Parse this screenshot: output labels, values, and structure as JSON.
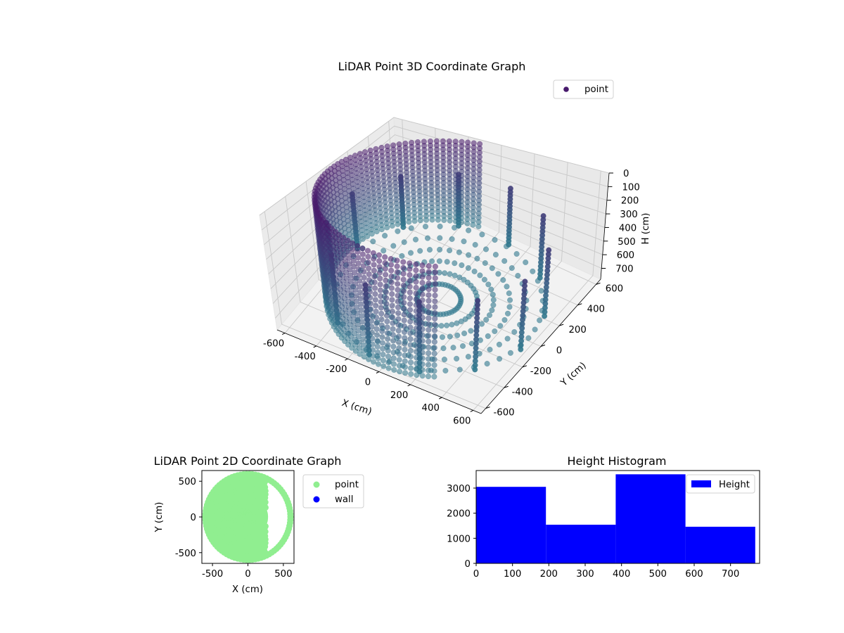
{
  "chart_data": [
    {
      "type": "scatter",
      "projection": "3d",
      "title": "LiDAR Point 3D Coordinate Graph",
      "xlabel": "X (cm)",
      "ylabel": "Y (cm)",
      "zlabel": "H (cm)",
      "xlim": [
        -650,
        650
      ],
      "ylim": [
        -650,
        650
      ],
      "zlim": [
        0,
        780
      ],
      "z_inverted": true,
      "x_ticks": [
        "-600",
        "-400",
        "-200",
        "0",
        "200",
        "400",
        "600"
      ],
      "y_ticks": [
        "-600",
        "-400",
        "-200",
        "0",
        "200",
        "400",
        "600"
      ],
      "z_ticks": [
        "0",
        "100",
        "200",
        "300",
        "400",
        "500",
        "600",
        "700"
      ],
      "colormap": "viridis",
      "legend": {
        "position": "top-right",
        "entries": [
          {
            "name": "point",
            "color": "#481a6c"
          }
        ]
      },
      "series": [
        {
          "name": "point",
          "shape": "cylindrical wall of columns with floor points",
          "wall_radius": 620,
          "floor_height": 780,
          "columns": [
            {
              "angle_deg": 200,
              "h_from": 0,
              "h_to": 760
            },
            {
              "angle_deg": 230,
              "h_from": 0,
              "h_to": 760
            },
            {
              "angle_deg": 260,
              "h_from": 0,
              "h_to": 760
            },
            {
              "angle_deg": 290,
              "h_from": 0,
              "h_to": 760
            },
            {
              "angle_deg": 320,
              "h_from": 0,
              "h_to": 760
            },
            {
              "angle_deg": 350,
              "h_from": 0,
              "h_to": 760
            },
            {
              "angle_deg": 20,
              "h_from": 0,
              "h_to": 760
            },
            {
              "angle_deg": 50,
              "h_from": 0,
              "h_to": 760
            },
            {
              "angle_deg": 80,
              "h_from": 0,
              "h_to": 760
            },
            {
              "angle_deg": 110,
              "h_from": 0,
              "h_to": 760
            },
            {
              "angle_deg": 140,
              "h_from": 0,
              "h_to": 760
            },
            {
              "angle_deg": 170,
              "h_from": 0,
              "h_to": 760
            }
          ]
        }
      ]
    },
    {
      "type": "scatter",
      "title": "LiDAR Point 2D Coordinate Graph",
      "xlabel": "X (cm)",
      "ylabel": "Y (cm)",
      "xlim": [
        -650,
        650
      ],
      "ylim": [
        -650,
        650
      ],
      "x_ticks": [
        "-500",
        "0",
        "500"
      ],
      "y_ticks": [
        "-500",
        "0",
        "500"
      ],
      "legend": {
        "position": "outside-right",
        "entries": [
          {
            "name": "point",
            "color": "#90ee90"
          },
          {
            "name": "wall",
            "color": "#0000ff"
          }
        ]
      },
      "series": [
        {
          "name": "point",
          "color": "#90ee90",
          "footprint": "filled disc centred at origin, radius 620, open toward +X",
          "radius": 620,
          "gap_x_from": 250
        },
        {
          "name": "wall",
          "color": "#0000ff",
          "values": []
        }
      ]
    },
    {
      "type": "bar",
      "title": "Height Histogram",
      "xlabel": "",
      "ylabel": "",
      "xlim": [
        0,
        780
      ],
      "ylim": [
        0,
        3700
      ],
      "x_ticks": [
        "0",
        "100",
        "200",
        "300",
        "400",
        "500",
        "600",
        "700"
      ],
      "y_ticks": [
        "0",
        "1000",
        "2000",
        "3000"
      ],
      "legend": {
        "position": "top-right",
        "entries": [
          {
            "name": "Height",
            "color": "#0000ff"
          }
        ]
      },
      "series": [
        {
          "name": "Height",
          "color": "#0000ff",
          "bins": [
            {
              "from": 0,
              "to": 192,
              "count": 3050
            },
            {
              "from": 192,
              "to": 384,
              "count": 1540
            },
            {
              "from": 384,
              "to": 576,
              "count": 3550
            },
            {
              "from": 576,
              "to": 768,
              "count": 1460
            }
          ]
        }
      ]
    }
  ]
}
